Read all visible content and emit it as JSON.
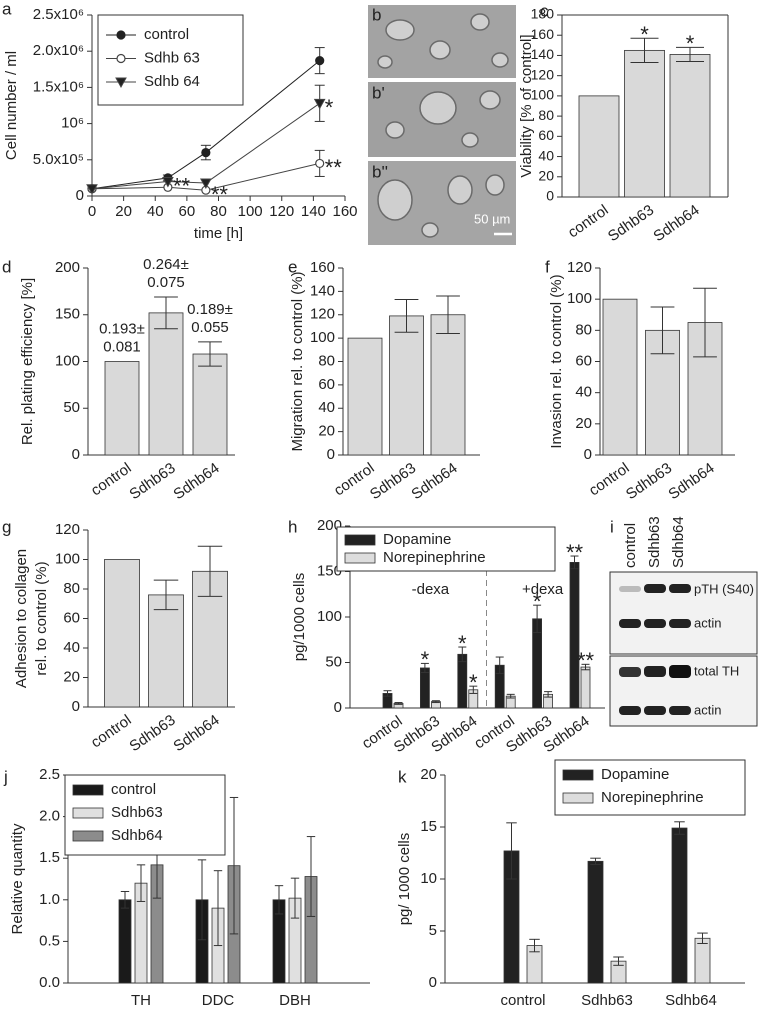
{
  "chart_data": [
    {
      "type": "line",
      "label": "a",
      "x_label": "time [h]",
      "y_label": "Cell number / ml",
      "x": [
        0,
        48,
        72,
        144
      ],
      "series": [
        {
          "name": "control",
          "color": "#222222",
          "marker": "circle",
          "marker_fill": "#222222",
          "values": [
            100000,
            250000,
            600000,
            1870000
          ],
          "errors": [
            null,
            40000,
            100000,
            180000
          ]
        },
        {
          "name": "Sdhb 63",
          "color": "#444444",
          "marker": "circle",
          "marker_fill": "#ffffff",
          "values": [
            100000,
            120000,
            80000,
            450000
          ],
          "errors": [
            null,
            null,
            null,
            180000
          ],
          "annotations": [
            null,
            null,
            "**",
            "**"
          ]
        },
        {
          "name": "Sdhb 64",
          "color": "#444444",
          "marker": "triangle-down",
          "marker_fill": "#222222",
          "values": [
            100000,
            200000,
            180000,
            1280000
          ],
          "errors": [
            null,
            null,
            null,
            250000
          ],
          "annotations": [
            null,
            "**",
            null,
            "*"
          ]
        }
      ],
      "xlim": [
        0,
        160
      ],
      "xticks": [
        0,
        20,
        40,
        60,
        80,
        100,
        120,
        140,
        160
      ],
      "ylim": [
        0,
        2500000
      ],
      "yticks": [
        0,
        {
          "value": 500000,
          "label": "5.0x10⁵"
        },
        {
          "value": 1000000,
          "label": "10⁶"
        },
        {
          "value": 1500000,
          "label": "1.5x10⁶"
        },
        {
          "value": 2000000,
          "label": "2.0x10⁶"
        },
        {
          "value": 2500000,
          "label": "2.5x10⁶"
        }
      ],
      "legend": "upper left"
    },
    {
      "type": "bar",
      "label": "c",
      "y_label": "Viability [% of control]",
      "categories": [
        "control",
        "Sdhb63",
        "Sdhb64"
      ],
      "series": [
        {
          "color": "#d9d9d9",
          "values": [
            100,
            145,
            141
          ],
          "errors": [
            null,
            12,
            7
          ],
          "annotations": [
            null,
            "*",
            "*"
          ]
        }
      ],
      "ylim": [
        0,
        180
      ],
      "yticks": [
        0,
        20,
        40,
        60,
        80,
        100,
        120,
        140,
        160,
        180
      ]
    },
    {
      "type": "bar",
      "label": "d",
      "y_label": "Rel. plating efficiency [%]",
      "categories": [
        "control",
        "Sdhb63",
        "Sdhb64"
      ],
      "series": [
        {
          "color": "#d9d9d9",
          "values": [
            100,
            152,
            108
          ],
          "errors": [
            null,
            17,
            13
          ],
          "annotations": [
            [
              "0.193±",
              "0.081"
            ],
            [
              "0.264±",
              "0.075"
            ],
            [
              "0.189±",
              "0.055"
            ]
          ]
        }
      ],
      "ylim": [
        0,
        200
      ],
      "yticks": [
        0,
        50,
        100,
        150,
        200
      ]
    },
    {
      "type": "bar",
      "label": "e",
      "y_label": "Migration rel. to control (%)",
      "categories": [
        "control",
        "Sdhb63",
        "Sdhb64"
      ],
      "series": [
        {
          "color": "#d9d9d9",
          "values": [
            100,
            119,
            120
          ],
          "errors": [
            null,
            14,
            16
          ]
        }
      ],
      "ylim": [
        0,
        160
      ],
      "yticks": [
        0,
        20,
        40,
        60,
        80,
        100,
        120,
        140,
        160
      ]
    },
    {
      "type": "bar",
      "label": "f",
      "y_label": "Invasion rel. to control (%)",
      "categories": [
        "control",
        "Sdhb63",
        "Sdhb64"
      ],
      "series": [
        {
          "color": "#d9d9d9",
          "values": [
            100,
            80,
            85
          ],
          "errors": [
            null,
            15,
            22
          ]
        }
      ],
      "ylim": [
        0,
        120
      ],
      "yticks": [
        0,
        20,
        40,
        60,
        80,
        100,
        120
      ]
    },
    {
      "type": "bar",
      "label": "g",
      "y_label": [
        "Adhesion to collagen",
        "rel. to control (%)"
      ],
      "categories": [
        "control",
        "Sdhb63",
        "Sdhb64"
      ],
      "series": [
        {
          "color": "#d9d9d9",
          "values": [
            100,
            76,
            92
          ],
          "errors": [
            null,
            10,
            17
          ]
        }
      ],
      "ylim": [
        0,
        120
      ],
      "yticks": [
        0,
        20,
        40,
        60,
        80,
        100,
        120
      ]
    },
    {
      "type": "bar",
      "label": "h",
      "y_label": "pg/1000 cells",
      "categories": [
        "control",
        "Sdhb63",
        "Sdhb64",
        "control",
        "Sdhb63",
        "Sdhb64"
      ],
      "groups": [
        "-dexa",
        "+dexa"
      ],
      "series": [
        {
          "name": "Dopamine",
          "color": "#222222",
          "values": [
            16,
            44,
            59,
            47,
            98,
            160
          ],
          "errors": [
            3,
            5,
            8,
            9,
            15,
            7
          ],
          "annotations": [
            null,
            "*",
            "*",
            null,
            "*",
            "**"
          ]
        },
        {
          "name": "Norepinephrine",
          "color": "#dddddd",
          "values": [
            5,
            7,
            20,
            13,
            15,
            45
          ],
          "errors": [
            1,
            1,
            4,
            2,
            3,
            3
          ],
          "annotations": [
            null,
            null,
            "*",
            null,
            null,
            "**"
          ]
        }
      ],
      "ylim": [
        0,
        200
      ],
      "yticks": [
        0,
        50,
        100,
        150,
        200
      ],
      "legend": "upper left"
    },
    {
      "type": "bar",
      "label": "j",
      "y_label": "Relative quantity",
      "categories": [
        "TH",
        "DDC",
        "DBH"
      ],
      "series": [
        {
          "name": "control",
          "color": "#1a1a1a",
          "values": [
            1.0,
            1.0,
            1.0
          ],
          "errors": [
            0.1,
            0.48,
            0.17
          ]
        },
        {
          "name": "Sdhb63",
          "color": "#e0e0e0",
          "values": [
            1.2,
            0.9,
            1.02
          ],
          "errors": [
            0.22,
            0.45,
            0.24
          ]
        },
        {
          "name": "Sdhb64",
          "color": "#8c8c8c",
          "values": [
            1.42,
            1.41,
            1.28
          ],
          "errors": [
            0.4,
            0.82,
            0.48
          ]
        }
      ],
      "ylim": [
        0,
        2.5
      ],
      "yticks": [
        {
          "value": 0,
          "label": "0.0"
        },
        0.5,
        {
          "value": 1,
          "label": "1.0"
        },
        1.5,
        {
          "value": 2,
          "label": "2.0"
        },
        2.5
      ],
      "legend": "upper left"
    },
    {
      "type": "bar",
      "label": "k",
      "y_label": "pg/ 1000 cells",
      "categories": [
        "control",
        "Sdhb63",
        "Sdhb64"
      ],
      "series": [
        {
          "name": "Dopamine",
          "color": "#222222",
          "values": [
            12.7,
            11.7,
            14.9
          ],
          "errors": [
            2.7,
            0.3,
            0.6
          ]
        },
        {
          "name": "Norepinephrine",
          "color": "#dddddd",
          "values": [
            3.6,
            2.1,
            4.3
          ],
          "errors": [
            0.6,
            0.4,
            0.5
          ]
        }
      ],
      "ylim": [
        0,
        20
      ],
      "yticks": [
        0,
        5,
        10,
        15,
        20
      ],
      "legend": "upper right"
    }
  ],
  "images": {
    "b": {
      "labels": [
        "b",
        "b'",
        "b''"
      ],
      "scale_bar": "50 µm"
    },
    "i": {
      "label": "i",
      "lanes": [
        "control",
        "Sdhb63",
        "Sdhb64"
      ],
      "bands": [
        "pTH (S40)",
        "actin",
        "total TH",
        "actin"
      ]
    }
  }
}
